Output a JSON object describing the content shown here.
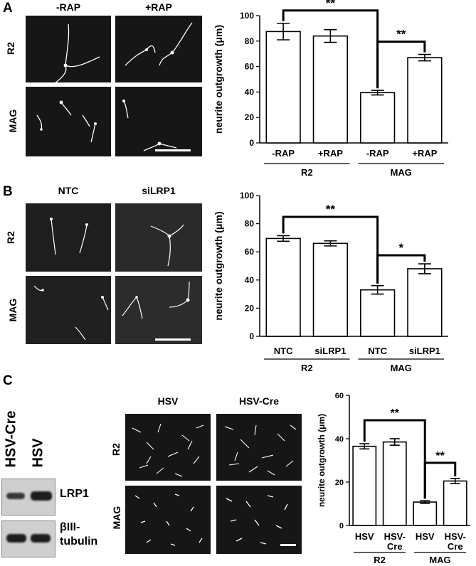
{
  "panels": {
    "A": {
      "letter": "A",
      "col_headers": [
        "-RAP",
        "+RAP"
      ],
      "row_labels": [
        "R2",
        "MAG"
      ]
    },
    "B": {
      "letter": "B",
      "col_headers": [
        "NTC",
        "siLRP1"
      ],
      "row_labels": [
        "R2",
        "MAG"
      ]
    },
    "C": {
      "letter": "C",
      "blot_lanes": [
        "HSV-Cre",
        "HSV"
      ],
      "blot_labels": [
        "LRP1",
        "βIII-",
        "tubulin"
      ],
      "col_headers": [
        "HSV",
        "HSV-Cre"
      ],
      "row_labels": [
        "R2",
        "MAG"
      ]
    }
  },
  "chart_data": [
    {
      "id": "A",
      "type": "bar",
      "ylabel": "neurite outgrowth (μm)",
      "ylim": [
        0,
        100
      ],
      "yticks": [
        0,
        20,
        40,
        60,
        80,
        100
      ],
      "categories": [
        "-RAP",
        "+RAP",
        "-RAP",
        "+RAP"
      ],
      "values": [
        87.5,
        84,
        39.5,
        67
      ],
      "errors": [
        6.5,
        5,
        1.8,
        2.5
      ],
      "groups": [
        {
          "label": "R2",
          "from": 0,
          "to": 1
        },
        {
          "label": "MAG",
          "from": 2,
          "to": 3
        }
      ],
      "significance": [
        {
          "from": 0,
          "to": 2,
          "label": "**"
        },
        {
          "from": 2,
          "to": 3,
          "label": "**"
        }
      ]
    },
    {
      "id": "B",
      "type": "bar",
      "ylabel": "neurite outgrowth (μm)",
      "ylim": [
        0,
        100
      ],
      "yticks": [
        0,
        20,
        40,
        60,
        80,
        100
      ],
      "categories": [
        "NTC",
        "siLRP1",
        "NTC",
        "siLRP1"
      ],
      "values": [
        69.5,
        66,
        33,
        48
      ],
      "errors": [
        2,
        1.8,
        3,
        3.5
      ],
      "groups": [
        {
          "label": "R2",
          "from": 0,
          "to": 1
        },
        {
          "label": "MAG",
          "from": 2,
          "to": 3
        }
      ],
      "significance": [
        {
          "from": 0,
          "to": 2,
          "label": "**"
        },
        {
          "from": 2,
          "to": 3,
          "label": "*"
        }
      ]
    },
    {
      "id": "C",
      "type": "bar",
      "ylabel": "neurite outgrowth (μm)",
      "ylim": [
        0,
        60
      ],
      "yticks": [
        0,
        20,
        40,
        60
      ],
      "categories": [
        "HSV",
        "HSV-Cre",
        "HSV",
        "HSV-Cre"
      ],
      "values": [
        36.5,
        38.5,
        10.8,
        20.5
      ],
      "errors": [
        1.2,
        1.5,
        0.6,
        1.2
      ],
      "groups": [
        {
          "label": "R2",
          "from": 0,
          "to": 1
        },
        {
          "label": "MAG",
          "from": 2,
          "to": 3
        }
      ],
      "significance": [
        {
          "from": 0,
          "to": 2,
          "label": "**"
        },
        {
          "from": 2,
          "to": 3,
          "label": "**"
        }
      ]
    }
  ]
}
